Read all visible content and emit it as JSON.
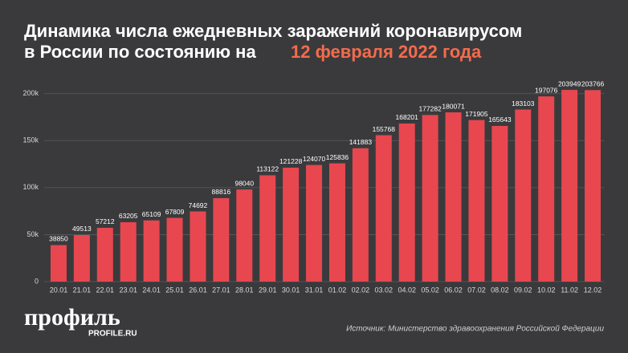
{
  "chart_data": {
    "type": "bar",
    "title": "Динамика числа ежедневных заражений коронавирусом в России по состоянию на",
    "title_date": "12 февраля 2022 года",
    "categories": [
      "20.01",
      "21.01",
      "22.01",
      "23.01",
      "24.01",
      "25.01",
      "26.01",
      "27.01",
      "28.01",
      "29.01",
      "30.01",
      "31.01",
      "01.02",
      "02.02",
      "03.02",
      "04.02",
      "05.02",
      "06.02",
      "07.02",
      "08.02",
      "09.02",
      "10.02",
      "11.02",
      "12.02"
    ],
    "values": [
      38850,
      49513,
      57212,
      63205,
      65109,
      67809,
      74692,
      88816,
      98040,
      113122,
      121228,
      124070,
      125836,
      141883,
      155768,
      168201,
      177282,
      180071,
      171905,
      165643,
      183103,
      197076,
      203949,
      203766
    ],
    "color": "#e8474f",
    "title_date_color": "#f46b4c",
    "ylim": [
      0,
      210000
    ],
    "yticks": [
      0,
      {
        "value": 50000,
        "label": "50k"
      },
      {
        "value": 100000,
        "label": "100k"
      },
      {
        "value": 150000,
        "label": "150k"
      },
      {
        "value": 200000,
        "label": "200k"
      }
    ],
    "grid": true,
    "logo": "профиль",
    "logo_site": "PROFILE.RU",
    "source": "Источник: Министерство здравоохранения Российской Федерации"
  }
}
